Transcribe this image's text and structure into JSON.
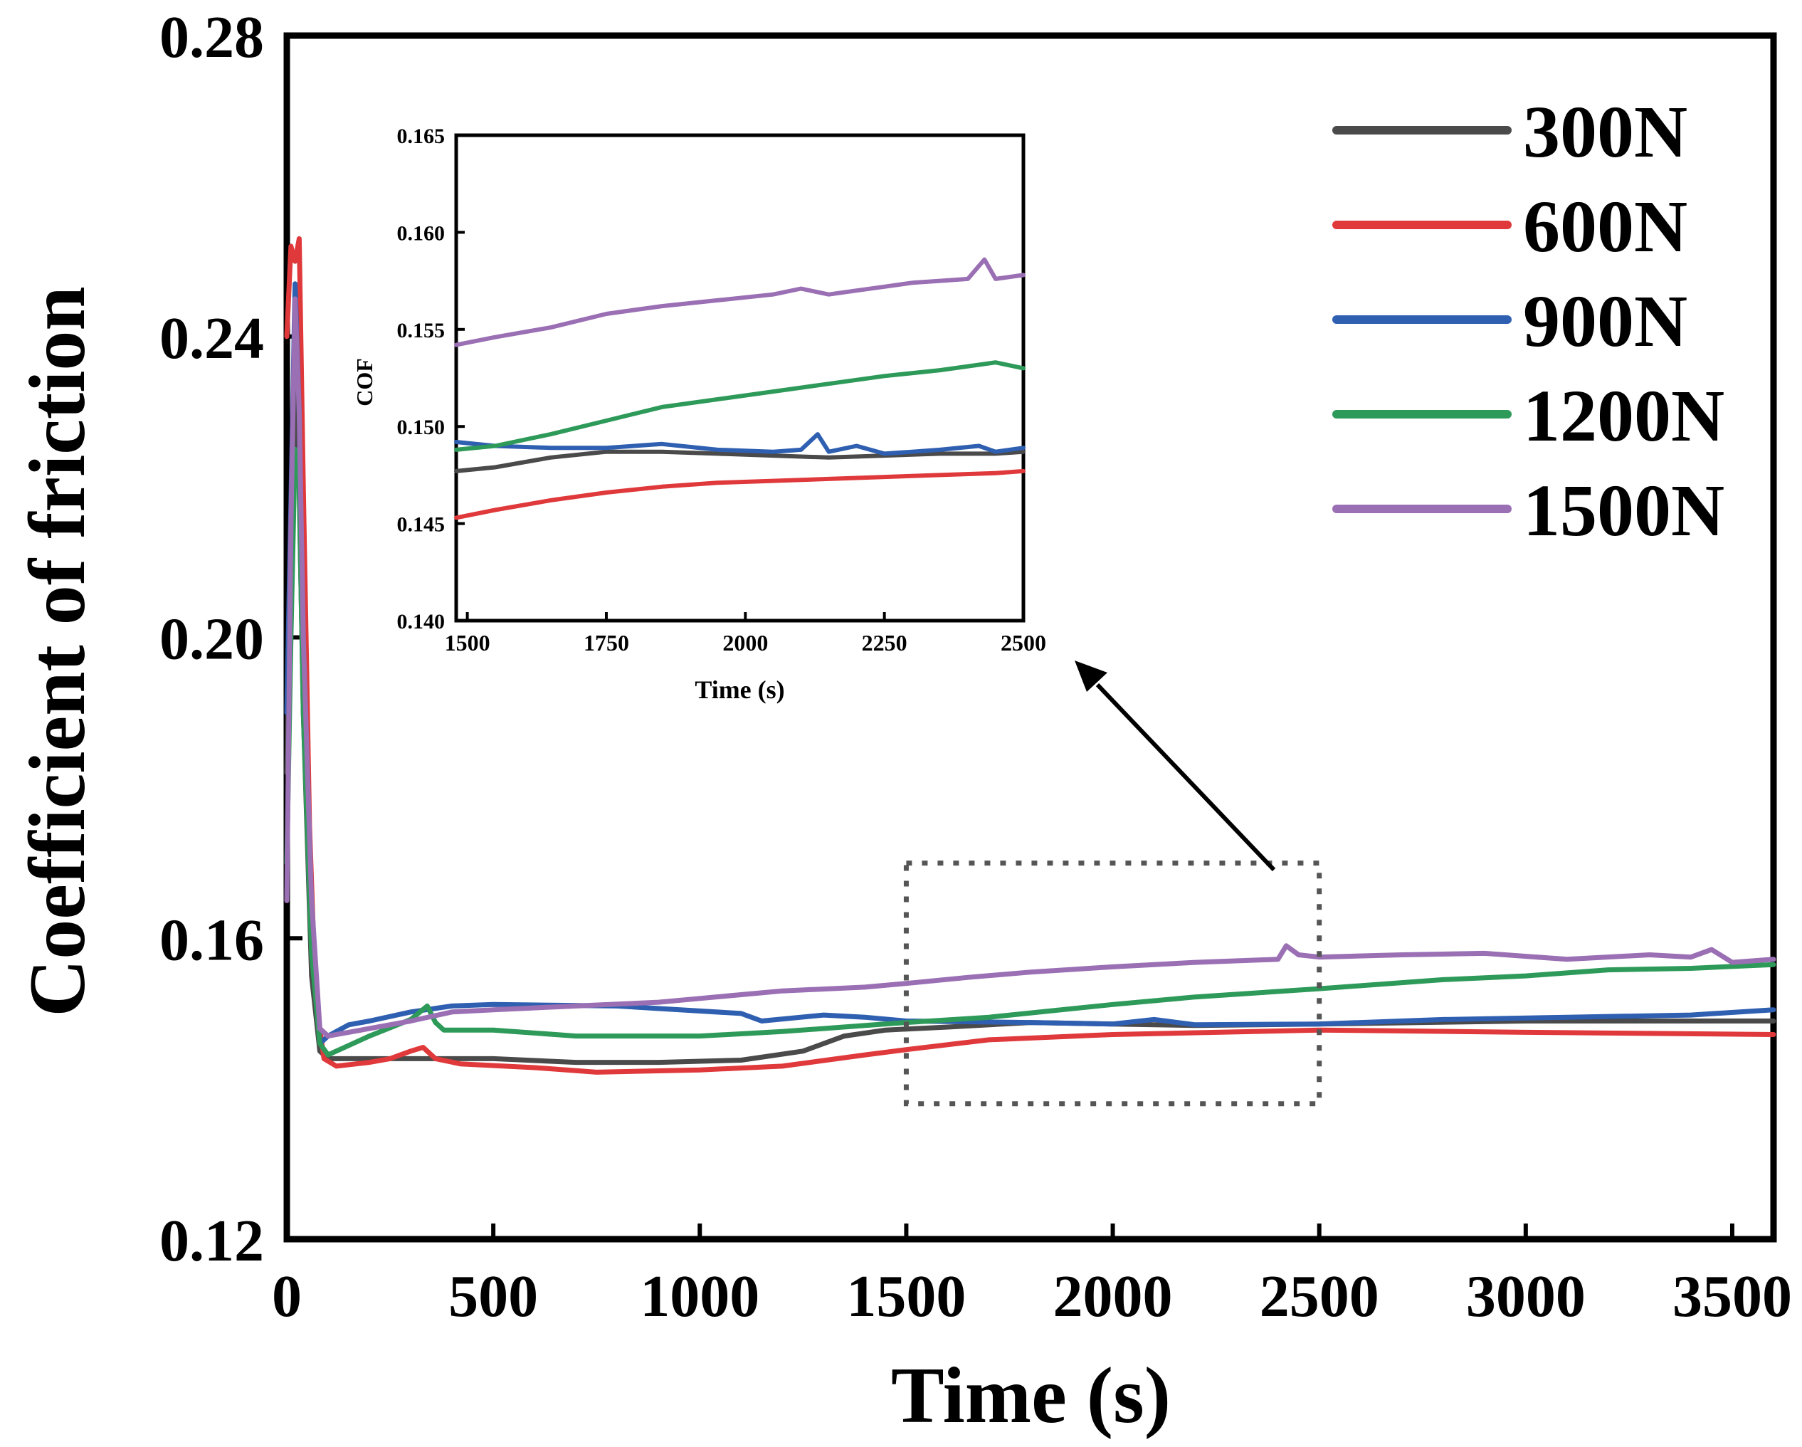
{
  "colors": {
    "300N": "#4a4a4a",
    "600N": "#e0393b",
    "900N": "#2f5fb0",
    "1200N": "#2e9a5a",
    "1500N": "#9a6fb4",
    "axis": "#000000",
    "zoom_box": "#555555"
  },
  "chart_data": [
    {
      "id": "main",
      "type": "line",
      "title": "",
      "xlabel": "Time (s)",
      "ylabel": "Coefficient of friction",
      "xlim": [
        0,
        3600
      ],
      "ylim": [
        0.12,
        0.28
      ],
      "xticks": [
        0,
        500,
        1000,
        1500,
        2000,
        2500,
        3000,
        3500
      ],
      "xtick_labels": [
        "0",
        "500",
        "1000",
        "1500",
        "2000",
        "2500",
        "3000",
        "3500"
      ],
      "yticks": [
        0.12,
        0.16,
        0.2,
        0.24,
        0.28
      ],
      "ytick_labels": [
        "0.12",
        "0.16",
        "0.20",
        "0.24",
        "0.28"
      ],
      "legend_position": "top-right",
      "zoom_box": {
        "x_range": [
          1500,
          2500
        ],
        "y_range": [
          0.138,
          0.17
        ]
      },
      "series": [
        {
          "name": "300N",
          "x": [
            0,
            10,
            20,
            30,
            40,
            60,
            80,
            100,
            150,
            300,
            500,
            700,
            900,
            1100,
            1250,
            1350,
            1450,
            1600,
            1800,
            2000,
            2200,
            2500,
            3000,
            3300,
            3600
          ],
          "y": [
            0.182,
            0.212,
            0.236,
            0.22,
            0.19,
            0.155,
            0.145,
            0.144,
            0.144,
            0.144,
            0.144,
            0.1435,
            0.1435,
            0.1438,
            0.145,
            0.147,
            0.1478,
            0.1482,
            0.1488,
            0.1486,
            0.1484,
            0.1486,
            0.149,
            0.149,
            0.149
          ]
        },
        {
          "name": "600N",
          "x": [
            0,
            10,
            20,
            30,
            40,
            55,
            70,
            90,
            120,
            200,
            250,
            300,
            330,
            360,
            420,
            600,
            750,
            1000,
            1200,
            1400,
            1500,
            1700,
            2000,
            2500,
            3000,
            3600
          ],
          "y": [
            0.24,
            0.252,
            0.25,
            0.253,
            0.22,
            0.175,
            0.152,
            0.144,
            0.143,
            0.1435,
            0.144,
            0.145,
            0.1455,
            0.144,
            0.1433,
            0.1428,
            0.1422,
            0.1425,
            0.143,
            0.1445,
            0.1452,
            0.1465,
            0.1472,
            0.1478,
            0.1475,
            0.1472
          ]
        },
        {
          "name": "900N",
          "x": [
            0,
            10,
            20,
            30,
            40,
            60,
            80,
            100,
            150,
            200,
            300,
            400,
            500,
            800,
            1100,
            1150,
            1300,
            1400,
            1500,
            1800,
            2000,
            2100,
            2200,
            2500,
            2800,
            3100,
            3400,
            3600
          ],
          "y": [
            0.19,
            0.218,
            0.247,
            0.23,
            0.195,
            0.16,
            0.146,
            0.147,
            0.1485,
            0.149,
            0.1502,
            0.151,
            0.1512,
            0.151,
            0.15,
            0.149,
            0.1498,
            0.1495,
            0.149,
            0.1488,
            0.1486,
            0.1492,
            0.1485,
            0.1486,
            0.1492,
            0.1495,
            0.1498,
            0.1505
          ]
        },
        {
          "name": "1200N",
          "x": [
            0,
            10,
            20,
            30,
            40,
            60,
            80,
            100,
            200,
            300,
            340,
            360,
            380,
            500,
            700,
            1000,
            1200,
            1400,
            1500,
            1700,
            2000,
            2200,
            2500,
            2800,
            3000,
            3200,
            3400,
            3600
          ],
          "y": [
            0.17,
            0.2,
            0.225,
            0.22,
            0.19,
            0.158,
            0.146,
            0.1445,
            0.147,
            0.1492,
            0.151,
            0.1488,
            0.1478,
            0.1478,
            0.147,
            0.147,
            0.1476,
            0.1484,
            0.1488,
            0.1495,
            0.1512,
            0.1522,
            0.1533,
            0.1545,
            0.155,
            0.1558,
            0.156,
            0.1565
          ]
        },
        {
          "name": "1500N",
          "x": [
            0,
            10,
            20,
            30,
            40,
            60,
            80,
            100,
            200,
            300,
            400,
            500,
            700,
            900,
            1000,
            1200,
            1400,
            1500,
            1650,
            1800,
            2000,
            2200,
            2400,
            2420,
            2450,
            2500,
            2700,
            2900,
            3100,
            3300,
            3400,
            3450,
            3500,
            3600
          ],
          "y": [
            0.165,
            0.215,
            0.245,
            0.23,
            0.2,
            0.165,
            0.148,
            0.147,
            0.148,
            0.149,
            0.1502,
            0.1505,
            0.151,
            0.1515,
            0.152,
            0.153,
            0.1535,
            0.154,
            0.1548,
            0.1555,
            0.1562,
            0.1568,
            0.1572,
            0.159,
            0.1578,
            0.1575,
            0.1578,
            0.158,
            0.1572,
            0.1578,
            0.1575,
            0.1585,
            0.1568,
            0.1572
          ]
        }
      ]
    },
    {
      "id": "inset",
      "type": "line",
      "title": "",
      "xlabel": "Time (s)",
      "ylabel": "COF",
      "xlim": [
        1480,
        2500
      ],
      "ylim": [
        0.14,
        0.165
      ],
      "xticks": [
        1500,
        1750,
        2000,
        2250,
        2500
      ],
      "xtick_labels": [
        "1500",
        "1750",
        "2000",
        "2250",
        "2500"
      ],
      "yticks": [
        0.14,
        0.145,
        0.15,
        0.155,
        0.16,
        0.165
      ],
      "ytick_labels": [
        "0.140",
        "0.145",
        "0.150",
        "0.155",
        "0.160",
        "0.165"
      ],
      "series": [
        {
          "name": "300N",
          "x": [
            1480,
            1550,
            1650,
            1750,
            1850,
            1950,
            2050,
            2150,
            2250,
            2350,
            2450,
            2500
          ],
          "y": [
            0.1477,
            0.1479,
            0.1484,
            0.1487,
            0.1487,
            0.1486,
            0.1485,
            0.1484,
            0.1485,
            0.1486,
            0.1486,
            0.1487
          ]
        },
        {
          "name": "600N",
          "x": [
            1480,
            1550,
            1650,
            1750,
            1850,
            1950,
            2050,
            2150,
            2250,
            2350,
            2450,
            2500
          ],
          "y": [
            0.1453,
            0.1457,
            0.1462,
            0.1466,
            0.1469,
            0.1471,
            0.1472,
            0.1473,
            0.1474,
            0.1475,
            0.1476,
            0.1477
          ]
        },
        {
          "name": "900N",
          "x": [
            1480,
            1550,
            1650,
            1750,
            1850,
            1950,
            2050,
            2100,
            2130,
            2150,
            2200,
            2250,
            2300,
            2350,
            2420,
            2450,
            2500
          ],
          "y": [
            0.1492,
            0.149,
            0.1489,
            0.1489,
            0.1491,
            0.1488,
            0.1487,
            0.1488,
            0.1496,
            0.1487,
            0.149,
            0.1486,
            0.1487,
            0.1488,
            0.149,
            0.1487,
            0.1489
          ]
        },
        {
          "name": "1200N",
          "x": [
            1480,
            1550,
            1650,
            1750,
            1850,
            1950,
            2050,
            2150,
            2250,
            2350,
            2450,
            2500
          ],
          "y": [
            0.1488,
            0.149,
            0.1496,
            0.1503,
            0.151,
            0.1514,
            0.1518,
            0.1522,
            0.1526,
            0.1529,
            0.1533,
            0.153
          ]
        },
        {
          "name": "1500N",
          "x": [
            1480,
            1550,
            1650,
            1750,
            1850,
            1950,
            2050,
            2100,
            2150,
            2200,
            2250,
            2300,
            2350,
            2400,
            2430,
            2450,
            2500
          ],
          "y": [
            0.1542,
            0.1546,
            0.1551,
            0.1558,
            0.1562,
            0.1565,
            0.1568,
            0.1571,
            0.1568,
            0.157,
            0.1572,
            0.1574,
            0.1575,
            0.1576,
            0.1586,
            0.1576,
            0.1578
          ]
        }
      ]
    }
  ]
}
